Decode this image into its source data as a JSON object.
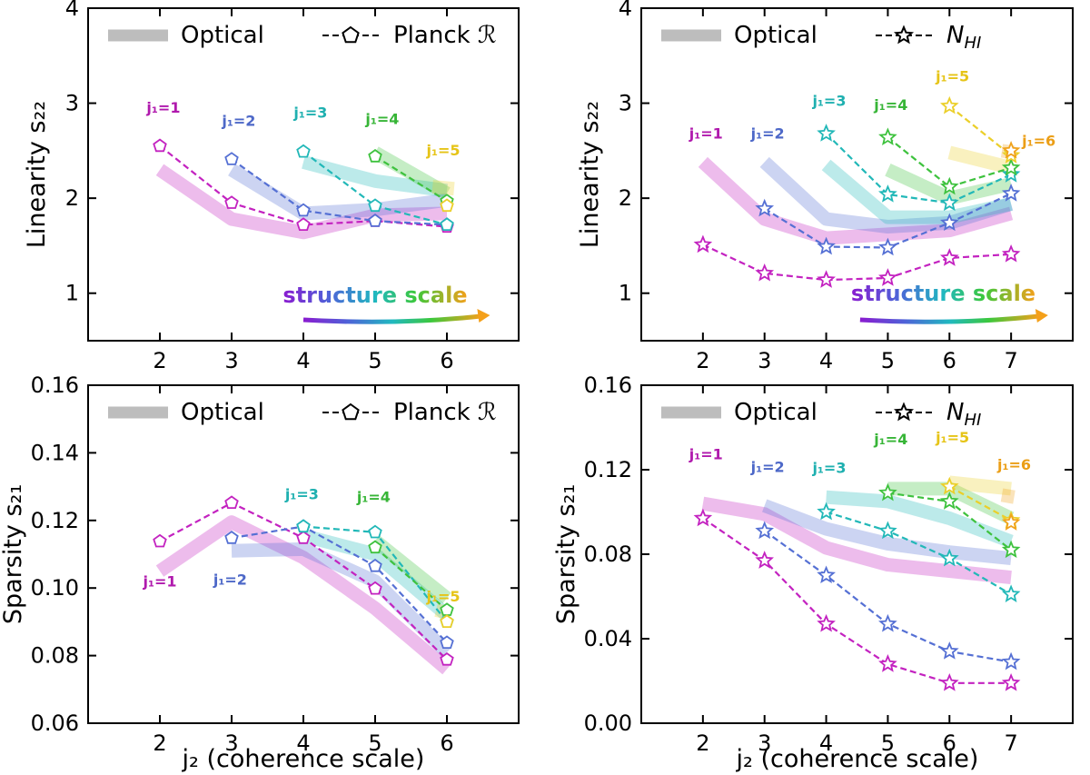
{
  "figure": {
    "xlabel": "j₂ (coherence scale)",
    "structure_scale_label": "structure scale"
  },
  "chart_data": [
    {
      "id": "top-left",
      "type": "line",
      "ylabel": "Linearity s₂₂",
      "xlim": [
        1,
        7
      ],
      "ylim": [
        0.5,
        4.0
      ],
      "xticks": [
        2,
        3,
        4,
        5,
        6
      ],
      "yticks": [
        1,
        2,
        3,
        4
      ],
      "yticklabels": [
        "1",
        "2",
        "3",
        "4"
      ],
      "legend": {
        "optical": "Optical",
        "other": "Planck ℛ",
        "marker": "pentagon"
      },
      "show_arrow": true,
      "optical": [
        {
          "j1": 1,
          "x": [
            2,
            3,
            4,
            5,
            6
          ],
          "y": [
            2.3,
            1.78,
            1.64,
            1.82,
            1.84
          ]
        },
        {
          "j1": 2,
          "x": [
            3,
            4,
            5,
            6
          ],
          "y": [
            2.3,
            1.84,
            1.88,
            1.98
          ]
        },
        {
          "j1": 3,
          "x": [
            4,
            5,
            6
          ],
          "y": [
            2.38,
            2.18,
            2.08
          ]
        },
        {
          "j1": 4,
          "x": [
            5,
            6
          ],
          "y": [
            2.48,
            2.05
          ]
        },
        {
          "j1": 5,
          "x": [
            5.8,
            6.1
          ],
          "y": [
            2.12,
            2.1
          ]
        }
      ],
      "series": [
        {
          "j1": 1,
          "label": "j₁=1",
          "x": [
            2,
            3,
            4,
            5,
            6
          ],
          "y": [
            2.55,
            1.95,
            1.72,
            1.76,
            1.7
          ]
        },
        {
          "j1": 2,
          "label": "j₁=2",
          "x": [
            3,
            4,
            5,
            6
          ],
          "y": [
            2.41,
            1.87,
            1.76,
            1.72
          ]
        },
        {
          "j1": 3,
          "label": "j₁=3",
          "x": [
            4,
            5,
            6
          ],
          "y": [
            2.49,
            1.92,
            1.72
          ]
        },
        {
          "j1": 4,
          "label": "j₁=4",
          "x": [
            5,
            6
          ],
          "y": [
            2.44,
            1.97
          ]
        },
        {
          "j1": 5,
          "label": "j₁=5",
          "x": [
            6
          ],
          "y": [
            1.92
          ]
        }
      ],
      "labels": [
        {
          "j1": 1,
          "x": 2.05,
          "y": 2.9
        },
        {
          "j1": 2,
          "x": 3.1,
          "y": 2.76
        },
        {
          "j1": 3,
          "x": 4.1,
          "y": 2.85
        },
        {
          "j1": 4,
          "x": 5.1,
          "y": 2.78
        },
        {
          "j1": 5,
          "x": 5.95,
          "y": 2.45
        }
      ],
      "arrow": {
        "label_x": 5.0,
        "label_y": 0.9,
        "x0": 4.0,
        "x1": 6.6,
        "y": 0.72
      }
    },
    {
      "id": "top-right",
      "type": "line",
      "ylabel": "Linearity s₂₂",
      "xlim": [
        1,
        8
      ],
      "ylim": [
        0.5,
        4.0
      ],
      "xticks": [
        2,
        3,
        4,
        5,
        6,
        7
      ],
      "yticks": [
        1,
        2,
        3,
        4
      ],
      "yticklabels": [
        "1",
        "2",
        "3",
        "4"
      ],
      "legend": {
        "optical": "Optical",
        "other": "N_HI",
        "marker": "star"
      },
      "show_arrow": true,
      "optical": [
        {
          "j1": 1,
          "x": [
            2,
            3,
            4,
            5,
            6,
            7
          ],
          "y": [
            2.38,
            1.78,
            1.58,
            1.62,
            1.66,
            1.84
          ]
        },
        {
          "j1": 2,
          "x": [
            3,
            4,
            5,
            6,
            7
          ],
          "y": [
            2.38,
            1.78,
            1.7,
            1.74,
            1.94
          ]
        },
        {
          "j1": 3,
          "x": [
            4,
            5,
            6,
            7
          ],
          "y": [
            2.35,
            1.8,
            1.8,
            1.94
          ]
        },
        {
          "j1": 4,
          "x": [
            5,
            6,
            7
          ],
          "y": [
            2.3,
            2.0,
            2.15
          ]
        },
        {
          "j1": 5,
          "x": [
            6,
            7
          ],
          "y": [
            2.48,
            2.32
          ]
        },
        {
          "j1": 6,
          "x": [
            6.85,
            7.05
          ],
          "y": [
            2.5,
            2.48
          ]
        }
      ],
      "series": [
        {
          "j1": 1,
          "label": "j₁=1",
          "x": [
            2,
            3,
            4,
            5,
            6,
            7
          ],
          "y": [
            1.51,
            1.21,
            1.14,
            1.16,
            1.37,
            1.41
          ]
        },
        {
          "j1": 2,
          "label": "j₁=2",
          "x": [
            3,
            4,
            5,
            6,
            7
          ],
          "y": [
            1.89,
            1.49,
            1.48,
            1.74,
            2.05
          ]
        },
        {
          "j1": 3,
          "label": "j₁=3",
          "x": [
            4,
            5,
            6,
            7
          ],
          "y": [
            2.68,
            2.04,
            1.95,
            2.25
          ]
        },
        {
          "j1": 4,
          "label": "j₁=4",
          "x": [
            5,
            6,
            7
          ],
          "y": [
            2.64,
            2.12,
            2.32
          ]
        },
        {
          "j1": 5,
          "label": "j₁=5",
          "x": [
            6,
            7
          ],
          "y": [
            2.97,
            2.45
          ]
        },
        {
          "j1": 6,
          "label": "j₁=6",
          "x": [
            7
          ],
          "y": [
            2.5
          ]
        }
      ],
      "labels": [
        {
          "j1": 1,
          "x": 2.05,
          "y": 2.63
        },
        {
          "j1": 2,
          "x": 3.05,
          "y": 2.63
        },
        {
          "j1": 3,
          "x": 4.05,
          "y": 2.97
        },
        {
          "j1": 4,
          "x": 5.05,
          "y": 2.93
        },
        {
          "j1": 5,
          "x": 6.05,
          "y": 3.23
        },
        {
          "j1": 6,
          "x": 7.45,
          "y": 2.55
        }
      ],
      "arrow": {
        "label_x": 5.9,
        "label_y": 0.92,
        "x0": 4.55,
        "x1": 7.6,
        "y": 0.72
      }
    },
    {
      "id": "bottom-left",
      "type": "line",
      "ylabel": "Sparsity s₂₁",
      "xlim": [
        1,
        7
      ],
      "ylim": [
        0.06,
        0.16
      ],
      "xticks": [
        2,
        3,
        4,
        5,
        6
      ],
      "yticks": [
        0.06,
        0.08,
        0.1,
        0.12,
        0.14,
        0.16
      ],
      "yticklabels": [
        "0.06",
        "0.08",
        "0.10",
        "0.12",
        "0.14",
        "0.16"
      ],
      "legend": {
        "optical": "Optical",
        "other": "Planck ℛ",
        "marker": "pentagon"
      },
      "show_arrow": false,
      "optical": [
        {
          "j1": 1,
          "x": [
            2,
            3,
            4,
            5,
            6
          ],
          "y": [
            0.105,
            0.1195,
            0.109,
            0.094,
            0.076
          ]
        },
        {
          "j1": 2,
          "x": [
            3,
            4,
            5,
            6
          ],
          "y": [
            0.111,
            0.1115,
            0.102,
            0.081
          ]
        },
        {
          "j1": 3,
          "x": [
            4,
            5,
            6
          ],
          "y": [
            0.1155,
            0.11,
            0.092
          ]
        },
        {
          "j1": 4,
          "x": [
            5,
            6
          ],
          "y": [
            0.114,
            0.097
          ]
        },
        {
          "j1": 5,
          "x": [
            5.85,
            6.05
          ],
          "y": [
            0.0935,
            0.0925
          ]
        }
      ],
      "series": [
        {
          "j1": 1,
          "label": "j₁=1",
          "x": [
            2,
            3,
            4,
            5,
            6
          ],
          "y": [
            0.1138,
            0.1252,
            0.1148,
            0.0998,
            0.0788
          ]
        },
        {
          "j1": 2,
          "label": "j₁=2",
          "x": [
            3,
            4,
            5,
            6
          ],
          "y": [
            0.1148,
            0.1182,
            0.1065,
            0.0838
          ]
        },
        {
          "j1": 3,
          "label": "j₁=3",
          "x": [
            4,
            5,
            6
          ],
          "y": [
            0.1182,
            0.1165,
            0.09
          ]
        },
        {
          "j1": 4,
          "label": "j₁=4",
          "x": [
            5,
            6
          ],
          "y": [
            0.112,
            0.0935
          ]
        },
        {
          "j1": 5,
          "label": "j₁=5",
          "x": [
            6
          ],
          "y": [
            0.09
          ]
        }
      ],
      "labels": [
        {
          "j1": 1,
          "x": 2.0,
          "y": 0.1005
        },
        {
          "j1": 2,
          "x": 2.98,
          "y": 0.101
        },
        {
          "j1": 3,
          "x": 3.98,
          "y": 0.1262
        },
        {
          "j1": 4,
          "x": 4.98,
          "y": 0.1255
        },
        {
          "j1": 5,
          "x": 5.95,
          "y": 0.096
        }
      ]
    },
    {
      "id": "bottom-right",
      "type": "line",
      "ylabel": "Sparsity s₂₁",
      "xlim": [
        1,
        8
      ],
      "ylim": [
        0.0,
        0.16
      ],
      "xticks": [
        2,
        3,
        4,
        5,
        6,
        7
      ],
      "yticks": [
        0.0,
        0.04,
        0.08,
        0.12,
        0.16
      ],
      "yticklabels": [
        "0.00",
        "0.04",
        "0.08",
        "0.12",
        "0.16"
      ],
      "legend": {
        "optical": "Optical",
        "other": "N_HI",
        "marker": "star"
      },
      "show_arrow": false,
      "optical": [
        {
          "j1": 1,
          "x": [
            2,
            3,
            4,
            5,
            6,
            7
          ],
          "y": [
            0.104,
            0.099,
            0.083,
            0.075,
            0.072,
            0.069
          ]
        },
        {
          "j1": 2,
          "x": [
            3,
            4,
            5,
            6,
            7
          ],
          "y": [
            0.103,
            0.092,
            0.085,
            0.081,
            0.078
          ]
        },
        {
          "j1": 3,
          "x": [
            4,
            5,
            6,
            7
          ],
          "y": [
            0.107,
            0.105,
            0.097,
            0.086
          ]
        },
        {
          "j1": 4,
          "x": [
            5,
            6,
            7
          ],
          "y": [
            0.111,
            0.111,
            0.097
          ]
        },
        {
          "j1": 5,
          "x": [
            6,
            7
          ],
          "y": [
            0.114,
            0.111
          ]
        },
        {
          "j1": 6,
          "x": [
            6.85,
            7.05
          ],
          "y": [
            0.108,
            0.107
          ]
        }
      ],
      "series": [
        {
          "j1": 1,
          "label": "j₁=1",
          "x": [
            2,
            3,
            4,
            5,
            6,
            7
          ],
          "y": [
            0.097,
            0.077,
            0.047,
            0.028,
            0.019,
            0.019
          ]
        },
        {
          "j1": 2,
          "label": "j₁=2",
          "x": [
            3,
            4,
            5,
            6,
            7
          ],
          "y": [
            0.091,
            0.07,
            0.047,
            0.034,
            0.029
          ]
        },
        {
          "j1": 3,
          "label": "j₁=3",
          "x": [
            4,
            5,
            6,
            7
          ],
          "y": [
            0.1,
            0.091,
            0.078,
            0.061
          ]
        },
        {
          "j1": 4,
          "label": "j₁=4",
          "x": [
            5,
            6,
            7
          ],
          "y": [
            0.109,
            0.105,
            0.082
          ]
        },
        {
          "j1": 5,
          "label": "j₁=5",
          "x": [
            6,
            7
          ],
          "y": [
            0.112,
            0.096
          ]
        },
        {
          "j1": 6,
          "label": "j₁=6",
          "x": [
            7
          ],
          "y": [
            0.095
          ]
        }
      ],
      "labels": [
        {
          "j1": 1,
          "x": 2.05,
          "y": 0.125
        },
        {
          "j1": 2,
          "x": 3.05,
          "y": 0.119
        },
        {
          "j1": 3,
          "x": 4.05,
          "y": 0.1185
        },
        {
          "j1": 4,
          "x": 5.05,
          "y": 0.132
        },
        {
          "j1": 5,
          "x": 6.05,
          "y": 0.133
        },
        {
          "j1": 6,
          "x": 7.05,
          "y": 0.12
        }
      ]
    }
  ],
  "colors": {
    "j1_1": "#c322c0",
    "j1_2": "#5570d4",
    "j1_3": "#22b8b8",
    "j1_4": "#3ec23e",
    "j1_5": "#ebcf2a",
    "j1_6": "#f0a21c",
    "optical_legend": "#bdbdbd"
  },
  "label_colors": {
    "j1_1": "#b019ad",
    "j1_2": "#4d68c8",
    "j1_3": "#1fb0b0",
    "j1_4": "#37b537",
    "j1_5": "#e6c417",
    "j1_6": "#eb9e16"
  }
}
